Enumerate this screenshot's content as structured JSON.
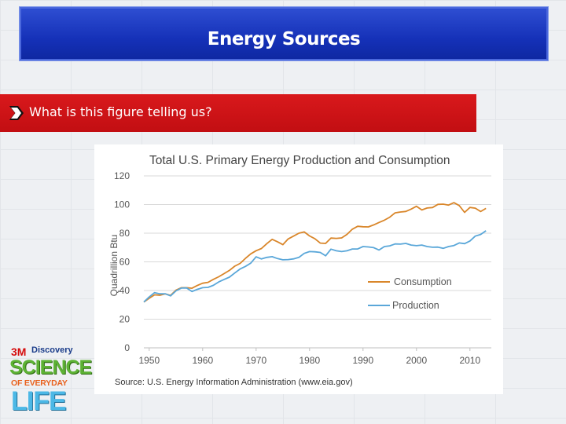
{
  "slide": {
    "title": "Energy Sources",
    "question": "What is this figure telling us?"
  },
  "logo": {
    "brand1": "3M",
    "brand2": "Discovery",
    "line1": "SCIENCE",
    "line2": "OF EVERYDAY",
    "line3": "LIFE"
  },
  "colors": {
    "title_bar": "#1a36bd",
    "question_bar": "#cc1417",
    "consumption": "#d9862a",
    "production": "#5aa7d9"
  },
  "chart_data": {
    "type": "line",
    "title": "Total U.S. Primary Energy Production and Consumption",
    "ylabel": "Quadrillion Btu",
    "xlabel": "",
    "xlim": [
      1949,
      2014
    ],
    "ylim": [
      0,
      120
    ],
    "xticks": [
      1950,
      1960,
      1970,
      1980,
      1990,
      2000,
      2010
    ],
    "yticks": [
      0,
      20,
      40,
      60,
      80,
      100,
      120
    ],
    "grid": "horizontal",
    "legend": "right-middle",
    "x": [
      1949,
      1950,
      1951,
      1952,
      1953,
      1954,
      1955,
      1956,
      1957,
      1958,
      1959,
      1960,
      1961,
      1962,
      1963,
      1964,
      1965,
      1966,
      1967,
      1968,
      1969,
      1970,
      1971,
      1972,
      1973,
      1974,
      1975,
      1976,
      1977,
      1978,
      1979,
      1980,
      1981,
      1982,
      1983,
      1984,
      1985,
      1986,
      1987,
      1988,
      1989,
      1990,
      1991,
      1992,
      1993,
      1994,
      1995,
      1996,
      1997,
      1998,
      1999,
      2000,
      2001,
      2002,
      2003,
      2004,
      2005,
      2006,
      2007,
      2008,
      2009,
      2010,
      2011,
      2012,
      2013
    ],
    "series": [
      {
        "name": "Consumption",
        "values": [
          32,
          34.6,
          37,
          36.7,
          37.7,
          36.6,
          40.2,
          42,
          42,
          41.6,
          43.5,
          45.1,
          45.7,
          47.8,
          49.6,
          51.8,
          54,
          57,
          58.9,
          62.4,
          65.6,
          67.8,
          69.3,
          72.7,
          75.7,
          74,
          72,
          76,
          78,
          80,
          80.9,
          78.1,
          76.1,
          73.1,
          72.9,
          76.6,
          76.4,
          76.7,
          79.2,
          82.8,
          84.8,
          84.5,
          84.4,
          85.8,
          87.5,
          89.1,
          91.2,
          94.2,
          94.8,
          95.2,
          96.8,
          98.8,
          96.2,
          97.6,
          97.9,
          100.1,
          100.3,
          99.6,
          101.3,
          99.3,
          94.5,
          98,
          97.5,
          95.1,
          97.3
        ]
      },
      {
        "name": "Production",
        "values": [
          32,
          35.5,
          38.5,
          37.7,
          37.7,
          36.3,
          39.7,
          41.7,
          41.8,
          39.3,
          40.8,
          42,
          42.2,
          43.6,
          46,
          47.7,
          49.3,
          52.2,
          55,
          56.8,
          59.1,
          63.5,
          62,
          63.1,
          63.6,
          62.3,
          61.4,
          61.6,
          62.1,
          63.1,
          65.9,
          67.2,
          67,
          66.6,
          64.2,
          68.9,
          67.7,
          67.2,
          67.7,
          69,
          69,
          70.7,
          70.4,
          69.9,
          68.3,
          70.7,
          71.2,
          72.5,
          72.4,
          72.9,
          71.7,
          71.3,
          71.7,
          70.7,
          70.2,
          70.3,
          69.4,
          70.7,
          71.4,
          73.2,
          72.7,
          74.6,
          78,
          79.1,
          81.7
        ]
      }
    ],
    "source": "Source: U.S. Energy Information Administration (www.eia.gov)"
  }
}
